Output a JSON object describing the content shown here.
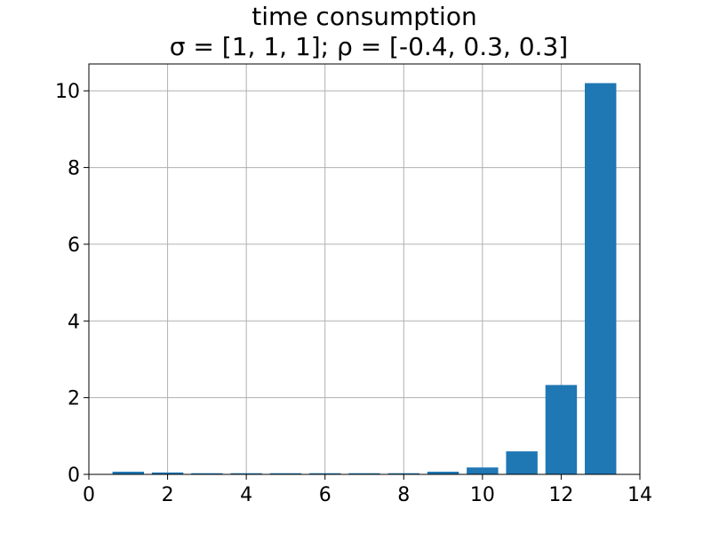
{
  "chart_data": {
    "type": "bar",
    "title": "time consumption",
    "subtitle": "σ = [1, 1, 1];  ρ = [-0.4, 0.3, 0.3]",
    "xlabel": "",
    "ylabel": "",
    "x": [
      1,
      2,
      3,
      4,
      5,
      6,
      7,
      8,
      9,
      10,
      11,
      12,
      13
    ],
    "values": [
      0.07,
      0.05,
      0.03,
      0.03,
      0.03,
      0.03,
      0.03,
      0.03,
      0.07,
      0.18,
      0.6,
      2.33,
      10.2
    ],
    "xlim": [
      0,
      14
    ],
    "ylim": [
      0,
      10.7
    ],
    "xticks": [
      0,
      2,
      4,
      6,
      8,
      10,
      12,
      14
    ],
    "yticks": [
      0,
      2,
      4,
      6,
      8,
      10
    ],
    "bar_color": "#1f77b4",
    "grid": true
  }
}
